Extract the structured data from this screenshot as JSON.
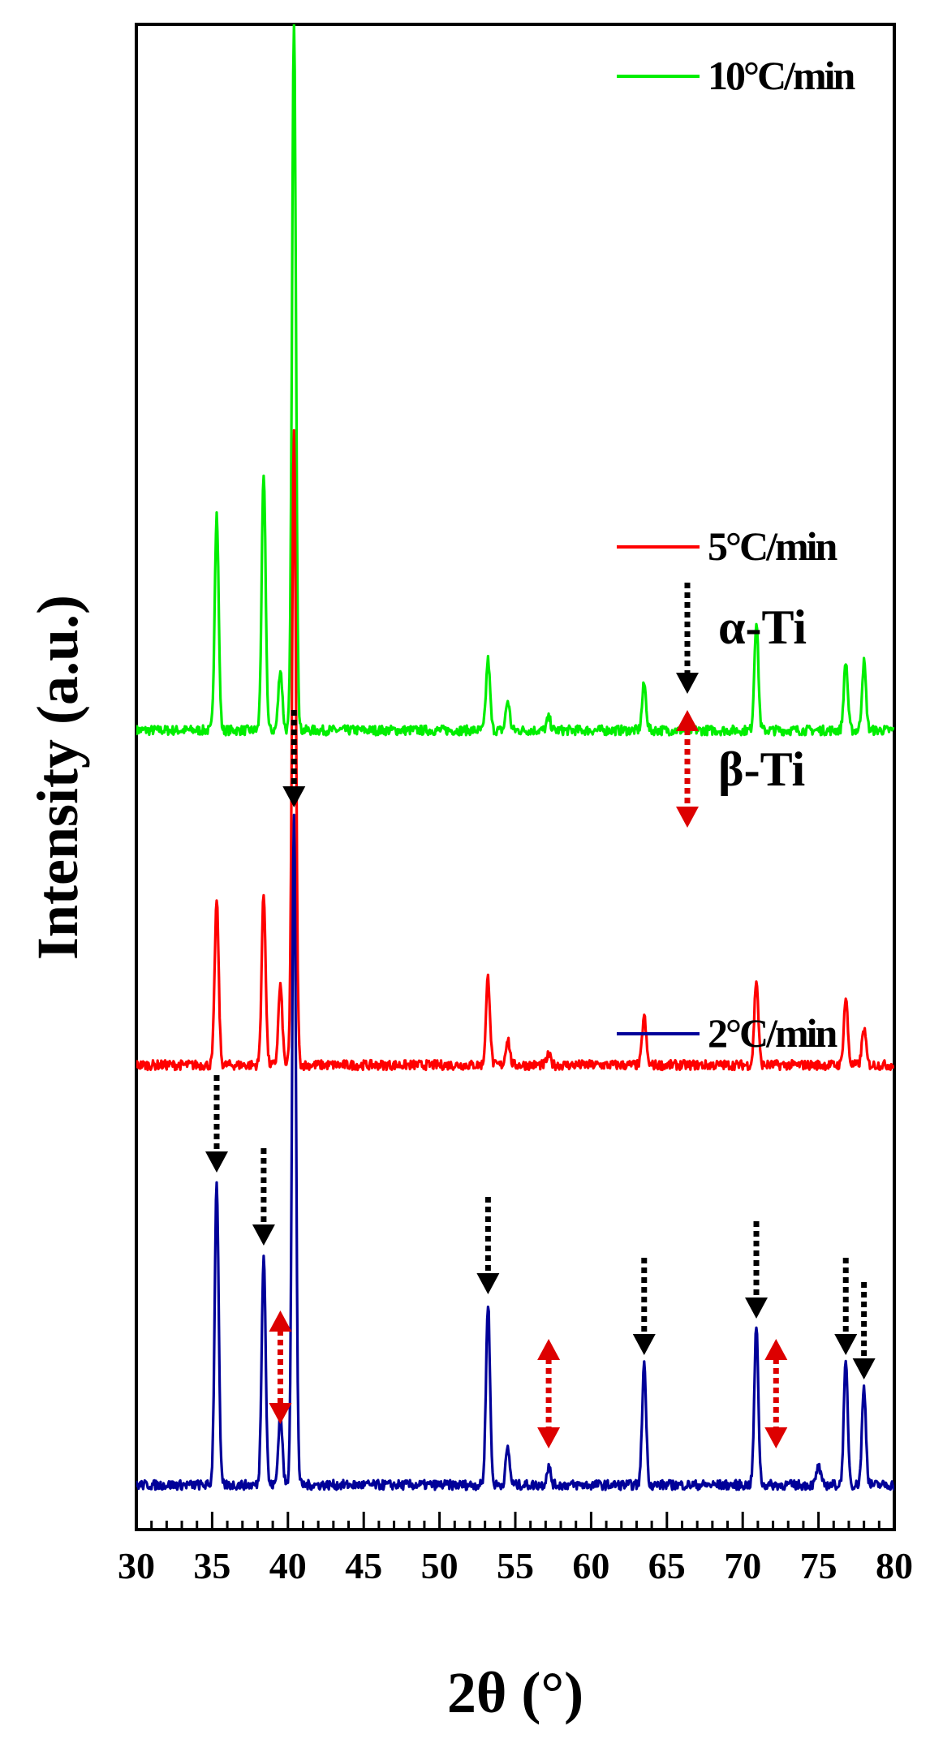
{
  "chart_data": {
    "type": "line",
    "xlabel": "2θ (°)",
    "ylabel": "Intensity (a.u.)",
    "xlim": [
      30,
      80
    ],
    "xticks": [
      30,
      35,
      40,
      45,
      50,
      55,
      60,
      65,
      70,
      75,
      80
    ],
    "y_ticks_shown": false,
    "grid": false,
    "legend": [
      {
        "label": "10°C/min",
        "color": "#00ee00",
        "placement": "top-right"
      },
      {
        "label": "5°C/min",
        "color": "#ff0000",
        "placement": "middle-right"
      },
      {
        "label": "2°C/min",
        "color": "#000099",
        "placement": "lower-right"
      }
    ],
    "phase_legend": [
      {
        "label": "α-Ti",
        "marker": "black-dashed-down-arrow",
        "color": "#000000"
      },
      {
        "label": "β-Ti",
        "marker": "red-dashed-double-arrow",
        "color": "#dd0000"
      }
    ],
    "series": [
      {
        "name": "10°C/min",
        "color": "#00ee00",
        "offset": 0.62,
        "peaks": [
          [
            35.3,
            0.178
          ],
          [
            38.4,
            0.208
          ],
          [
            39.5,
            0.05
          ],
          [
            40.4,
            0.58
          ],
          [
            53.2,
            0.058
          ],
          [
            54.5,
            0.024
          ],
          [
            57.2,
            0.01
          ],
          [
            63.5,
            0.038
          ],
          [
            70.9,
            0.09
          ],
          [
            76.8,
            0.056
          ],
          [
            78.0,
            0.056
          ]
        ]
      },
      {
        "name": "5°C/min",
        "color": "#ff0000",
        "offset": 0.345,
        "peaks": [
          [
            35.3,
            0.135
          ],
          [
            38.4,
            0.14
          ],
          [
            39.5,
            0.065
          ],
          [
            40.4,
            0.52
          ],
          [
            53.2,
            0.072
          ],
          [
            54.5,
            0.022
          ],
          [
            57.2,
            0.008
          ],
          [
            63.5,
            0.04
          ],
          [
            70.9,
            0.07
          ],
          [
            76.8,
            0.055
          ],
          [
            78.0,
            0.03
          ]
        ]
      },
      {
        "name": "2°C/min",
        "color": "#000099",
        "offset": 0.0,
        "peaks": [
          [
            35.3,
            0.25
          ],
          [
            38.4,
            0.19
          ],
          [
            39.5,
            0.06
          ],
          [
            40.4,
            0.55
          ],
          [
            53.2,
            0.15
          ],
          [
            54.5,
            0.03
          ],
          [
            57.2,
            0.015
          ],
          [
            63.5,
            0.1
          ],
          [
            70.9,
            0.13
          ],
          [
            75.0,
            0.015
          ],
          [
            76.8,
            0.1
          ],
          [
            78.0,
            0.08
          ]
        ]
      }
    ],
    "annotations": [
      {
        "phase": "α-Ti",
        "x": [
          35.3,
          38.4,
          40.4,
          53.2,
          63.5,
          70.9,
          76.8,
          78.0
        ]
      },
      {
        "phase": "β-Ti",
        "x": [
          39.5,
          57.2,
          72.2
        ]
      }
    ]
  }
}
